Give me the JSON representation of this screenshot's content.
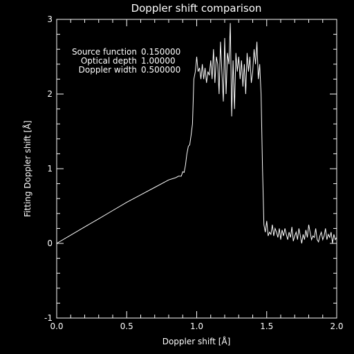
{
  "chart_data": {
    "type": "line",
    "title": "Doppler shift comparison",
    "xlabel": "Doppler shift [Å]",
    "ylabel": "Fitting Doppler shift [Å]",
    "xlim": [
      0,
      2
    ],
    "ylim": [
      -1,
      3
    ],
    "x_ticks": [
      "0.0",
      "0.5",
      "1.0",
      "1.5",
      "2.0"
    ],
    "y_ticks": [
      "-1",
      "0",
      "1",
      "2",
      "3"
    ],
    "grid": false,
    "line_color": "#ffffff",
    "background": "#000000",
    "annotations": [
      {
        "label": "Source function",
        "value": "0.150000"
      },
      {
        "label": "Optical depth",
        "value": "1.00000"
      },
      {
        "label": "Doppler width",
        "value": "0.500000"
      }
    ],
    "series": [
      {
        "x": [
          0.0,
          0.1,
          0.2,
          0.3,
          0.4,
          0.5,
          0.6,
          0.7,
          0.8,
          0.85,
          0.87,
          0.89,
          0.9,
          0.91,
          0.92,
          0.93,
          0.94,
          0.95,
          0.96,
          0.97,
          0.98,
          0.99,
          1.0,
          1.01,
          1.02,
          1.03,
          1.04,
          1.05,
          1.06,
          1.07,
          1.08,
          1.09,
          1.1,
          1.11,
          1.12,
          1.13,
          1.14,
          1.15,
          1.16,
          1.17,
          1.18,
          1.19,
          1.2,
          1.21,
          1.22,
          1.23,
          1.24,
          1.25,
          1.26,
          1.27,
          1.28,
          1.29,
          1.3,
          1.31,
          1.32,
          1.33,
          1.34,
          1.35,
          1.36,
          1.37,
          1.38,
          1.39,
          1.4,
          1.41,
          1.42,
          1.43,
          1.44,
          1.45,
          1.46,
          1.47,
          1.48,
          1.49,
          1.5,
          1.51,
          1.52,
          1.53,
          1.54,
          1.55,
          1.56,
          1.57,
          1.58,
          1.59,
          1.6,
          1.61,
          1.62,
          1.63,
          1.64,
          1.65,
          1.66,
          1.67,
          1.68,
          1.69,
          1.7,
          1.71,
          1.72,
          1.73,
          1.74,
          1.75,
          1.76,
          1.77,
          1.78,
          1.79,
          1.8,
          1.81,
          1.82,
          1.83,
          1.84,
          1.85,
          1.86,
          1.87,
          1.88,
          1.89,
          1.9,
          1.91,
          1.92,
          1.93,
          1.94,
          1.95,
          1.96,
          1.97,
          1.98,
          1.99,
          2.0
        ],
        "y": [
          0.0,
          0.11,
          0.22,
          0.33,
          0.44,
          0.55,
          0.65,
          0.75,
          0.85,
          0.88,
          0.9,
          0.9,
          0.96,
          0.95,
          1.05,
          1.2,
          1.3,
          1.32,
          1.45,
          1.6,
          2.2,
          2.3,
          2.5,
          2.3,
          2.35,
          2.2,
          2.4,
          2.2,
          2.35,
          2.15,
          2.3,
          2.25,
          2.45,
          2.2,
          2.6,
          2.15,
          2.5,
          2.4,
          2.0,
          2.7,
          2.3,
          1.9,
          2.75,
          2.0,
          2.55,
          2.4,
          2.95,
          1.7,
          2.45,
          1.8,
          2.55,
          2.3,
          2.5,
          2.2,
          2.45,
          2.1,
          2.4,
          2.0,
          2.55,
          2.3,
          2.5,
          2.15,
          2.3,
          2.6,
          2.4,
          2.7,
          2.2,
          2.4,
          2.0,
          1.0,
          0.25,
          0.15,
          0.3,
          0.1,
          0.15,
          0.12,
          0.25,
          0.1,
          0.2,
          0.15,
          0.08,
          0.2,
          0.05,
          0.18,
          0.1,
          0.2,
          0.12,
          0.05,
          0.15,
          0.08,
          0.22,
          0.03,
          0.1,
          0.15,
          0.05,
          0.2,
          0.1,
          0.0,
          0.12,
          0.05,
          0.18,
          0.08,
          0.25,
          0.15,
          0.05,
          0.1,
          0.08,
          0.2,
          0.05,
          0.02,
          0.1,
          0.15,
          0.05,
          0.1,
          0.2,
          0.05,
          0.12,
          0.08,
          0.15,
          0.0,
          0.12,
          0.05,
          0.08
        ]
      }
    ]
  }
}
